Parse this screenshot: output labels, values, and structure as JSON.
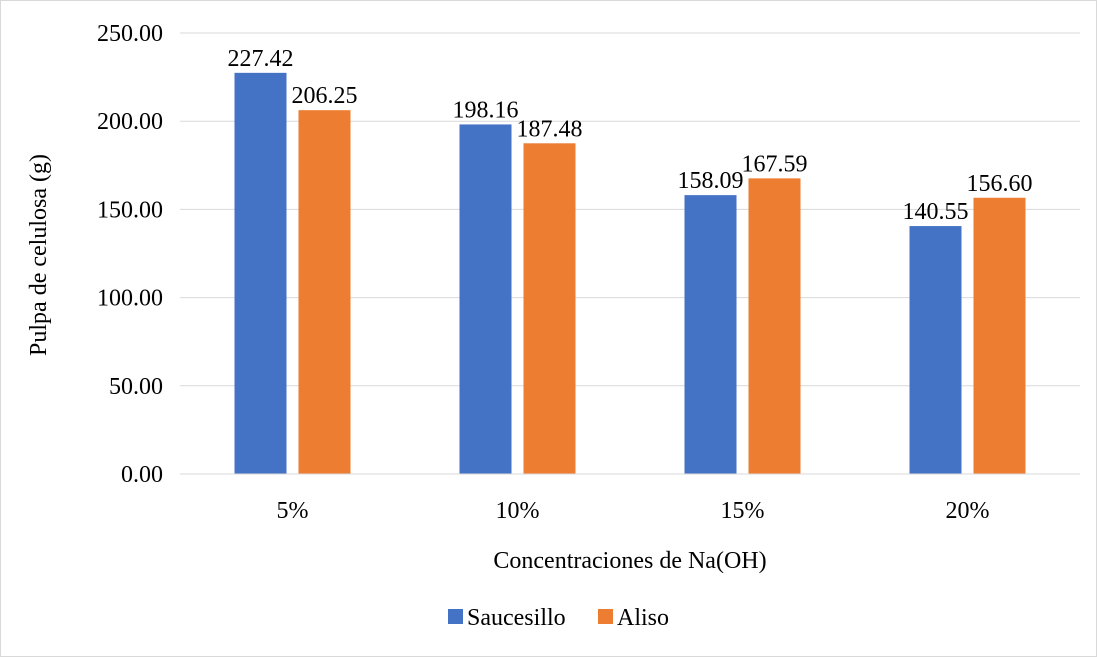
{
  "chart_data": {
    "type": "bar",
    "categories": [
      "5%",
      "10%",
      "15%",
      "20%"
    ],
    "series": [
      {
        "name": "Saucesillo",
        "color": "#4472c4",
        "values": [
          227.42,
          198.16,
          158.09,
          140.55
        ],
        "labels": [
          "227.42",
          "198.16",
          "158.09",
          "140.55"
        ]
      },
      {
        "name": "Aliso",
        "color": "#ed7d31",
        "values": [
          206.25,
          187.48,
          167.59,
          156.6
        ],
        "labels": [
          "206.25",
          "187.48",
          "167.59",
          "156.60"
        ]
      }
    ],
    "title": "",
    "xlabel": "Concentraciones de Na(OH)",
    "ylabel": "Pulpa de celulosa (g)",
    "ylim": [
      0,
      250
    ],
    "yticks": [
      0,
      50,
      100,
      150,
      200,
      250
    ],
    "ytick_labels": [
      "0.00",
      "50.00",
      "100.00",
      "150.00",
      "200.00",
      "250.00"
    ],
    "grid": true,
    "gridline_color": "#d9d9d9",
    "legend_position": "bottom"
  }
}
